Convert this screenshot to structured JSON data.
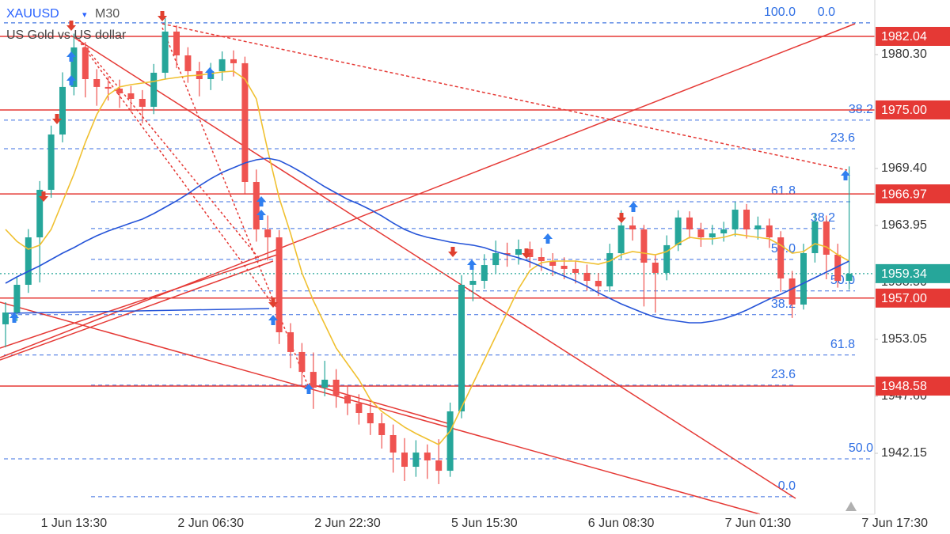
{
  "header": {
    "symbol": "XAUUSD",
    "timeframe": "M30",
    "description": "US Gold vs US dollar"
  },
  "chart_data": {
    "type": "candlestick",
    "categories": [
      null,
      null,
      null,
      null,
      null,
      null,
      "1 Jun 13:30",
      null,
      null,
      null,
      null,
      null,
      null,
      null,
      null,
      null,
      null,
      null,
      "2 Jun 06:30",
      null,
      null,
      null,
      null,
      null,
      null,
      null,
      null,
      null,
      null,
      null,
      "2 Jun 22:30",
      null,
      null,
      null,
      null,
      null,
      null,
      null,
      null,
      null,
      null,
      null,
      "5 Jun 15:30",
      null,
      null,
      null,
      null,
      null,
      null,
      null,
      null,
      null,
      null,
      null,
      "6 Jun 08:30",
      null,
      null,
      null,
      null,
      null,
      null,
      null,
      null,
      null,
      null,
      null,
      "7 Jun 01:30",
      null,
      null,
      null,
      null,
      null,
      null,
      null,
      null,
      null,
      null,
      null,
      "7 Jun 17:30"
    ],
    "open": [
      1954.49,
      1955.62,
      1958.27,
      1962.81,
      1967.36,
      1972.65,
      1977.2,
      1980.98,
      1977.95,
      1977.2,
      1977.04,
      1976.59,
      1976.06,
      1975.3,
      1978.56,
      1982.5,
      1980.22,
      1978.71,
      1977.95,
      1978.71,
      1979.85,
      1979.47,
      1968.11,
      1963.57,
      1962.81,
      1953.73,
      1951.84,
      1949.94,
      1948.43,
      1949.19,
      1947.67,
      1946.92,
      1946.01,
      1945.02,
      1943.89,
      1942.22,
      1940.86,
      1942.22,
      1941.47,
      1940.48,
      1946.16,
      1958.27,
      1958.65,
      1960.16,
      1961.3,
      1961.15,
      1961.68,
      1960.92,
      1960.54,
      1960.09,
      1959.79,
      1959.41,
      1958.65,
      1958.12,
      1961.3,
      1963.95,
      1963.57,
      1960.39,
      1959.41,
      1962.06,
      1964.71,
      1963.57,
      1962.81,
      1963.19,
      1963.57,
      1965.46,
      1963.57,
      1963.95,
      1962.81,
      1958.88,
      1956.38,
      1961.3,
      1964.33,
      1961.15,
      1958.65,
      null,
      null,
      null,
      null
    ],
    "high": [
      1956.6,
      1959.0,
      1963.6,
      1968.2,
      1973.5,
      1978.6,
      1982.3,
      1981.5,
      1978.9,
      1978.2,
      1977.9,
      1977.3,
      1976.9,
      1979.4,
      1983.8,
      1983.1,
      1981.0,
      1979.6,
      1979.5,
      1980.6,
      1980.7,
      1980.1,
      1969.3,
      1964.9,
      1963.5,
      1954.6,
      1952.7,
      1951.8,
      1951.0,
      1950.2,
      1948.6,
      1947.8,
      1947.0,
      1946.0,
      1944.9,
      1943.6,
      1943.4,
      1943.0,
      1943.5,
      1947.0,
      1959.2,
      1959.8,
      1961.2,
      1962.5,
      1962.3,
      1962.6,
      1962.4,
      1961.8,
      1961.3,
      1960.9,
      1960.6,
      1960.2,
      1959.4,
      1962.2,
      1965.4,
      1964.8,
      1964.0,
      1961.1,
      1963.0,
      1965.4,
      1965.3,
      1964.2,
      1964.0,
      1964.3,
      1966.2,
      1966.0,
      1964.8,
      1964.6,
      1963.4,
      1959.6,
      1962.2,
      1965.1,
      1964.9,
      1962.2,
      1969.6,
      null,
      null,
      null,
      null
    ],
    "low": [
      1952.3,
      1954.8,
      1957.5,
      1958.5,
      1966.6,
      1971.9,
      1976.4,
      1976.2,
      1975.4,
      1975.9,
      1975.2,
      1974.8,
      1973.7,
      1974.6,
      1977.9,
      1979.0,
      1977.6,
      1976.3,
      1976.9,
      1977.8,
      1978.2,
      1967.0,
      1962.4,
      1960.6,
      1952.6,
      1950.3,
      1948.6,
      1946.4,
      1947.6,
      1946.5,
      1945.8,
      1944.9,
      1943.9,
      1942.6,
      1940.3,
      1939.5,
      1939.9,
      1939.7,
      1939.2,
      1939.9,
      1945.5,
      1956.7,
      1957.9,
      1959.4,
      1960.0,
      1960.2,
      1959.9,
      1959.6,
      1959.1,
      1958.8,
      1958.4,
      1957.7,
      1957.2,
      1957.6,
      1960.8,
      1962.5,
      1956.2,
      1955.6,
      1958.7,
      1961.5,
      1962.7,
      1961.9,
      1962.1,
      1962.4,
      1962.9,
      1962.7,
      1962.6,
      1961.8,
      1957.6,
      1955.1,
      1955.9,
      1960.4,
      1958.8,
      1958.0,
      1957.8,
      null,
      null,
      null,
      null
    ],
    "close": [
      1955.62,
      1958.27,
      1962.81,
      1967.36,
      1972.65,
      1977.2,
      1980.98,
      1977.95,
      1977.2,
      1977.04,
      1976.59,
      1976.06,
      1975.3,
      1978.56,
      1982.5,
      1980.22,
      1978.71,
      1977.95,
      1978.71,
      1979.85,
      1979.47,
      1968.11,
      1963.57,
      1962.81,
      1953.73,
      1951.84,
      1949.94,
      1948.43,
      1949.19,
      1947.67,
      1946.92,
      1946.01,
      1945.02,
      1943.89,
      1942.22,
      1940.86,
      1942.22,
      1941.47,
      1940.48,
      1946.16,
      1958.27,
      1958.65,
      1960.16,
      1961.3,
      1961.15,
      1961.68,
      1960.92,
      1960.54,
      1960.09,
      1959.79,
      1959.41,
      1958.65,
      1958.12,
      1961.3,
      1963.95,
      1963.57,
      1960.39,
      1959.41,
      1962.06,
      1964.71,
      1963.57,
      1962.81,
      1963.19,
      1963.57,
      1965.46,
      1963.57,
      1963.95,
      1962.81,
      1958.88,
      1956.38,
      1961.3,
      1964.33,
      1961.15,
      1958.65,
      1959.34,
      null,
      null,
      null,
      null
    ],
    "up_color": "#26a69a",
    "down_color": "#ef5350",
    "series": [
      {
        "color": "#f0c030",
        "values": [
          1963.57,
          1962.43,
          1961.68,
          1962.06,
          1963.57,
          1966.22,
          1968.87,
          1971.9,
          1974.55,
          1976.44,
          1977.2,
          1977.42,
          1977.57,
          1977.73,
          1977.95,
          1978.1,
          1978.26,
          1978.33,
          1978.48,
          1978.63,
          1978.71,
          1977.95,
          1976.06,
          1971.14,
          1966.6,
          1963.19,
          1959.41,
          1956.76,
          1954.49,
          1952.22,
          1950.7,
          1949.19,
          1947.29,
          1946.16,
          1945.4,
          1944.65,
          1944.04,
          1943.51,
          1942.98,
          1944.27,
          1946.54,
          1948.81,
          1951.08,
          1953.35,
          1955.62,
          1957.89,
          1959.63,
          1960.39,
          1960.54,
          1960.54,
          1960.54,
          1960.39,
          1960.24,
          1960.54,
          1961.15,
          1961.45,
          1961.3,
          1961.15,
          1961.45,
          1962.21,
          1962.81,
          1962.66,
          1962.66,
          1962.81,
          1963.12,
          1962.96,
          1962.81,
          1962.66,
          1962.06,
          1961.3,
          1961.45,
          1962.21,
          1961.9,
          1961.15,
          1960.54,
          null,
          null,
          null,
          null
        ]
      },
      {
        "color": "#2554d8",
        "values": [
          1958.42,
          1959.03,
          1959.56,
          1960.09,
          1960.69,
          1961.3,
          1961.83,
          1962.43,
          1962.96,
          1963.42,
          1963.8,
          1964.18,
          1964.55,
          1965.08,
          1965.69,
          1966.3,
          1966.98,
          1967.73,
          1968.42,
          1969.02,
          1969.47,
          1969.93,
          1970.23,
          1970.38,
          1970.16,
          1969.63,
          1969.02,
          1968.34,
          1967.66,
          1967.05,
          1966.45,
          1965.99,
          1965.46,
          1964.86,
          1964.18,
          1963.57,
          1963.12,
          1962.81,
          1962.59,
          1962.36,
          1962.21,
          1962.06,
          1961.83,
          1961.45,
          1961.15,
          1960.85,
          1960.47,
          1960.01,
          1959.56,
          1959.1,
          1958.65,
          1958.12,
          1957.51,
          1956.98,
          1956.45,
          1956.0,
          1955.55,
          1955.17,
          1954.94,
          1954.79,
          1954.64,
          1954.64,
          1954.79,
          1955.02,
          1955.39,
          1955.85,
          1956.38,
          1956.91,
          1957.36,
          1957.89,
          1958.42,
          1958.95,
          1959.48,
          1960.01,
          1960.54,
          null,
          null,
          null,
          null
        ]
      }
    ],
    "ylim": [
      1936.32,
      1985.52
    ],
    "yticks": [
      {
        "value": 1980.3,
        "label": "1980.30"
      },
      {
        "value": 1969.4,
        "label": "1969.40"
      },
      1963.95,
      {
        "value": 1958.5,
        "label": "1958.50"
      },
      1953.05,
      {
        "value": 1947.6,
        "label": "1947.60"
      },
      1942.15
    ],
    "level_color": "#e53935",
    "levels": [
      {
        "value": 1982.04,
        "label": "1982.04"
      },
      {
        "value": 1975,
        "label": "1975.00"
      },
      {
        "value": 1966.97,
        "label": "1966.97"
      },
      {
        "value": 1957,
        "label": "1957.00"
      },
      {
        "value": 1948.58,
        "label": "1948.58"
      }
    ],
    "current": {
      "value": 1959.34,
      "label": "1959.34",
      "color": "#26a69a"
    },
    "annotations": [
      {
        "value": 1983.33,
        "label": "100.0"
      },
      {
        "value": 1983.33,
        "label": "0.0"
      },
      {
        "value": 1974.02,
        "label": "38.2"
      },
      {
        "value": 1971.29,
        "label": "23.6"
      },
      {
        "value": 1966.22,
        "label": "61.8"
      },
      {
        "value": 1963.65,
        "label": "38.2"
      },
      {
        "value": 1960.7,
        "label": "50.0"
      },
      {
        "value": 1957.68,
        "label": "50.0"
      },
      {
        "value": 1955.41,
        "label": "38.2"
      },
      {
        "value": 1951.55,
        "label": "61.8"
      },
      {
        "value": 1948.67,
        "label": "23.6"
      },
      {
        "value": 1941.62,
        "label": "50.0"
      },
      {
        "value": 1937.99,
        "label": "0.0"
      }
    ]
  }
}
